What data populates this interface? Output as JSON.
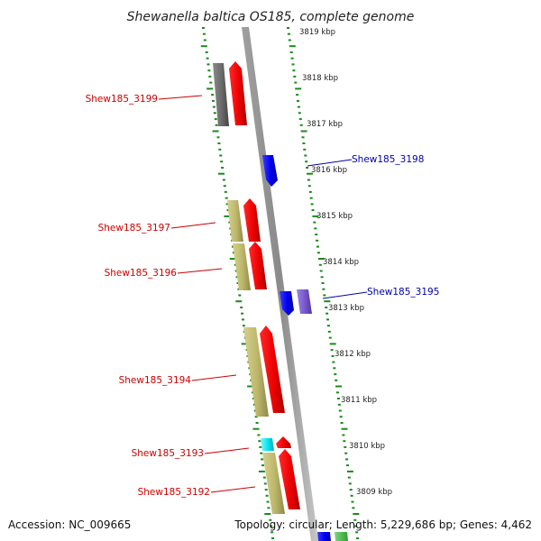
{
  "title": "Shewanella baltica OS185, complete genome",
  "footer": {
    "accession": "Accession: NC_009665",
    "topology": "Topology: circular; Length: 5,229,686 bp; Genes: 4,462"
  },
  "colors": {
    "red": "#ff0000",
    "blue": "#0000ee",
    "purple": "#7755cc",
    "khaki": "#bdb76b",
    "grey": "#6a6a6a",
    "cyan": "#00e5ee",
    "tick_green": "#1a8a1a"
  },
  "kbp_labels": [
    "3819 kbp",
    "3818 kbp",
    "3817 kbp",
    "3816 kbp",
    "3815 kbp",
    "3814 kbp",
    "3813 kbp",
    "3812 kbp",
    "3811 kbp",
    "3810 kbp",
    "3809 kbp"
  ],
  "gene_labels": [
    {
      "text": "Shew185_3199",
      "color": "red"
    },
    {
      "text": "Shew185_3198",
      "color": "blue"
    },
    {
      "text": "Shew185_3197",
      "color": "red"
    },
    {
      "text": "Shew185_3196",
      "color": "red"
    },
    {
      "text": "Shew185_3195",
      "color": "blue"
    },
    {
      "text": "Shew185_3194",
      "color": "red"
    },
    {
      "text": "Shew185_3193",
      "color": "red"
    },
    {
      "text": "Shew185_3192",
      "color": "red"
    }
  ]
}
